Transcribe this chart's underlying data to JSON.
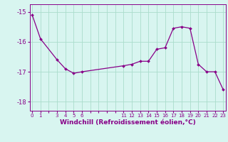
{
  "x": [
    0,
    1,
    3,
    4,
    5,
    6,
    11,
    12,
    13,
    14,
    15,
    16,
    17,
    18,
    19,
    20,
    21,
    22,
    23
  ],
  "y": [
    -15.1,
    -15.9,
    -16.6,
    -16.9,
    -17.05,
    -17.0,
    -16.8,
    -16.75,
    -16.65,
    -16.65,
    -16.25,
    -16.2,
    -15.55,
    -15.5,
    -15.55,
    -16.75,
    -17.0,
    -17.0,
    -17.6
  ],
  "line_color": "#880088",
  "marker": "D",
  "markersize": 2.0,
  "bg_color": "#d8f5f0",
  "grid_color": "#aaddcc",
  "xlabel": "Windchill (Refroidissement éolien,°C)",
  "xlabel_fontsize": 6.5,
  "yticks": [
    -15,
    -16,
    -17,
    -18
  ],
  "xtick_labels": [
    "0",
    "1",
    "",
    "3",
    "4",
    "5",
    "6",
    "",
    "",
    "",
    "",
    "11",
    "12",
    "13",
    "14",
    "15",
    "16",
    "17",
    "18",
    "19",
    "20",
    "21",
    "22",
    "23"
  ],
  "xtick_positions": [
    0,
    1,
    2,
    3,
    4,
    5,
    6,
    7,
    8,
    9,
    10,
    11,
    12,
    13,
    14,
    15,
    16,
    17,
    18,
    19,
    20,
    21,
    22,
    23
  ],
  "xlim": [
    -0.3,
    23.3
  ],
  "ylim": [
    -18.3,
    -14.75
  ],
  "linewidth": 0.9
}
